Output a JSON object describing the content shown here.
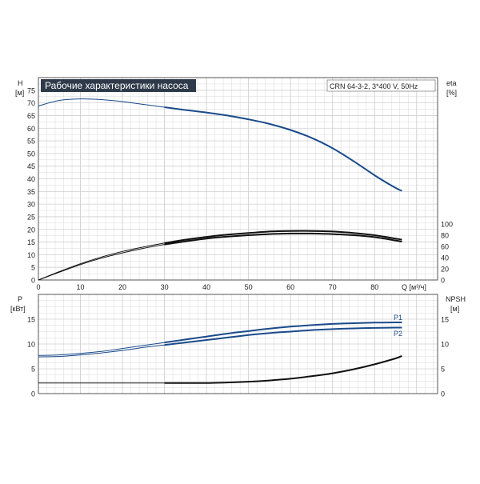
{
  "chart_data": [
    {
      "type": "line",
      "title": "Рабочие характеристики насоса",
      "subtitle": "CRN 64-3-2, 3*400 V, 50Hz",
      "ylabel": "H",
      "ylabel_unit": "[м]",
      "y2label": "eta",
      "y2label_unit": "[%]",
      "xlabel": "Q [м³/ч]",
      "xlim": [
        0,
        95
      ],
      "ylim": [
        0,
        80
      ],
      "y2lim": [
        0,
        100
      ],
      "grid": true,
      "x_ticks": [
        "0",
        "10",
        "20",
        "30",
        "40",
        "50",
        "60",
        "70",
        "80"
      ],
      "y_ticks": [
        "0",
        "5",
        "10",
        "15",
        "20",
        "25",
        "30",
        "35",
        "40",
        "45",
        "50",
        "55",
        "60",
        "65",
        "70",
        "75"
      ],
      "y2_ticks": [
        "0",
        "20",
        "40",
        "60",
        "80",
        "100"
      ],
      "colors": {
        "head": "#1a4a8a",
        "eta": "#111111",
        "grid": "#d0d0d0",
        "title_bg": "#2e3a4a"
      },
      "series": [
        {
          "key": "head",
          "axis": "left",
          "x": [
            0,
            5,
            10,
            15,
            20,
            25,
            30,
            35,
            40,
            45,
            50,
            55,
            60,
            65,
            70,
            75,
            80,
            85,
            86.5
          ],
          "y": [
            68.8,
            71.0,
            71.6,
            71.3,
            70.5,
            69.4,
            68.3,
            67.2,
            66.2,
            65.0,
            63.5,
            61.7,
            59.3,
            56.2,
            52.1,
            47.0,
            41.4,
            36.4,
            35.3
          ]
        },
        {
          "key": "eta1",
          "axis": "right",
          "x": [
            0,
            5,
            10,
            15,
            20,
            25,
            30,
            35,
            40,
            45,
            50,
            55,
            60,
            65,
            70,
            75,
            80,
            85,
            86.5
          ],
          "y": [
            0,
            15,
            29,
            41,
            51,
            59,
            66,
            72,
            77,
            81,
            84,
            86.5,
            87.5,
            87.5,
            86.5,
            84,
            80,
            74,
            72
          ]
        },
        {
          "key": "eta2",
          "axis": "right",
          "x": [
            0,
            5,
            10,
            15,
            20,
            25,
            30,
            35,
            40,
            45,
            50,
            55,
            60,
            65,
            70,
            75,
            80,
            85,
            86.5
          ],
          "y": [
            0,
            14,
            27.5,
            39,
            48.5,
            56.5,
            63.5,
            69,
            74,
            77.5,
            80,
            82,
            83,
            83,
            82,
            80,
            76.5,
            70.5,
            68.5
          ]
        }
      ]
    },
    {
      "type": "line",
      "ylabel": "P",
      "ylabel_unit": "[кВт]",
      "y2label": "NPSH",
      "y2label_unit": "[м]",
      "xlim": [
        0,
        95
      ],
      "ylim": [
        0,
        20
      ],
      "y2lim": [
        0,
        20
      ],
      "grid": true,
      "y_ticks": [
        "0",
        "5",
        "10",
        "15"
      ],
      "y2_ticks": [
        "0",
        "5",
        "10",
        "15"
      ],
      "colors": {
        "power": "#1a4a8a",
        "npsh": "#111111"
      },
      "series": [
        {
          "key": "p1",
          "name": "P1",
          "axis": "left",
          "x": [
            0,
            5,
            10,
            15,
            20,
            25,
            30,
            35,
            40,
            45,
            50,
            55,
            60,
            65,
            70,
            75,
            80,
            85,
            86.5
          ],
          "y": [
            7.7,
            7.8,
            8.1,
            8.5,
            9.1,
            9.7,
            10.3,
            10.9,
            11.5,
            12.1,
            12.6,
            13.1,
            13.5,
            13.8,
            14.05,
            14.2,
            14.3,
            14.35,
            14.35
          ]
        },
        {
          "key": "p2",
          "name": "P2",
          "axis": "left",
          "x": [
            0,
            5,
            10,
            15,
            20,
            25,
            30,
            35,
            40,
            45,
            50,
            55,
            60,
            65,
            70,
            75,
            80,
            85,
            86.5
          ],
          "y": [
            7.4,
            7.5,
            7.8,
            8.2,
            8.7,
            9.3,
            9.8,
            10.3,
            10.8,
            11.3,
            11.8,
            12.2,
            12.5,
            12.8,
            13.0,
            13.15,
            13.25,
            13.3,
            13.3
          ]
        },
        {
          "key": "npsh",
          "axis": "right",
          "x": [
            0,
            5,
            10,
            15,
            20,
            25,
            30,
            35,
            40,
            45,
            50,
            55,
            60,
            65,
            70,
            75,
            80,
            85,
            86.5
          ],
          "y": [
            2.15,
            2.15,
            2.15,
            2.15,
            2.15,
            2.15,
            2.15,
            2.15,
            2.15,
            2.25,
            2.4,
            2.65,
            3.0,
            3.5,
            4.1,
            4.9,
            5.9,
            7.1,
            7.6
          ]
        }
      ]
    }
  ]
}
